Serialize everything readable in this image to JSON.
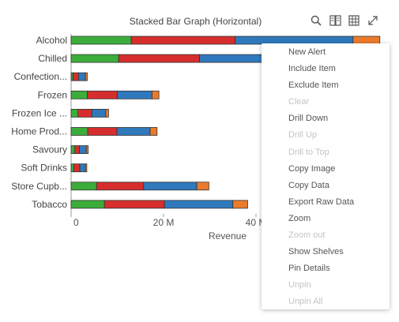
{
  "header": {
    "title": "Stacked Bar Graph (Horizontal)",
    "icons": [
      "search-icon",
      "book-icon",
      "table-icon",
      "expand-icon"
    ]
  },
  "chart_data": {
    "type": "bar",
    "orientation": "horizontal",
    "stacked": true,
    "categories": [
      "Alcohol",
      "Chilled",
      "Confection...",
      "Frozen",
      "Frozen Ice ...",
      "Home Prod...",
      "Savoury",
      "Soft Drinks",
      "Store Cupb...",
      "Tobacco"
    ],
    "series": [
      {
        "color": "#3cad3a",
        "values": [
          13.0,
          10.3,
          0.4,
          3.5,
          1.5,
          3.6,
          0.8,
          0.6,
          5.5,
          7.2
        ]
      },
      {
        "color": "#d62d2d",
        "values": [
          22.5,
          17.5,
          1.2,
          6.5,
          3.0,
          6.3,
          1.0,
          1.3,
          10.2,
          13.0
        ]
      },
      {
        "color": "#2f79bc",
        "values": [
          25.5,
          17.0,
          1.5,
          7.5,
          3.0,
          7.2,
          1.5,
          1.2,
          11.5,
          14.8
        ]
      },
      {
        "color": "#eb7b2c",
        "values": [
          5.8,
          5.2,
          0.4,
          1.5,
          0.6,
          1.5,
          0.4,
          0.3,
          2.6,
          3.2
        ]
      }
    ],
    "x_ticks": [
      "0",
      "20 M",
      "40 M"
    ],
    "xlabel": "Revenue",
    "xlim": [
      0,
      68
    ],
    "grid": false
  },
  "context_menu": {
    "items": [
      {
        "label": "New Alert",
        "enabled": true
      },
      {
        "label": "Include Item",
        "enabled": true
      },
      {
        "label": "Exclude Item",
        "enabled": true
      },
      {
        "label": "Clear",
        "enabled": false
      },
      {
        "label": "Drill Down",
        "enabled": true
      },
      {
        "label": "Drill Up",
        "enabled": false
      },
      {
        "label": "Drill to Top",
        "enabled": false
      },
      {
        "label": "Copy Image",
        "enabled": true
      },
      {
        "label": "Copy Data",
        "enabled": true
      },
      {
        "label": "Export Raw Data",
        "enabled": true
      },
      {
        "label": "Zoom",
        "enabled": true
      },
      {
        "label": "Zoom out",
        "enabled": false
      },
      {
        "label": "Show Shelves",
        "enabled": true
      },
      {
        "label": "Pin Details",
        "enabled": true
      },
      {
        "label": "Unpin",
        "enabled": false
      },
      {
        "label": "Unpin All",
        "enabled": false
      }
    ]
  }
}
